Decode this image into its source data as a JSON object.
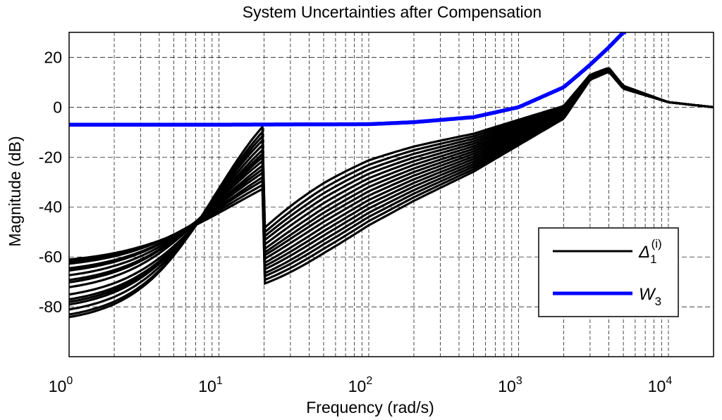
{
  "chart_data": {
    "type": "line",
    "title": "System Uncertainties after Compensation",
    "xlabel": "Frequency (rad/s)",
    "ylabel": "Magnitude (dB)",
    "x_scale": "log",
    "xlim": [
      1,
      20000
    ],
    "ylim": [
      -100,
      30
    ],
    "x_ticks": [
      1,
      10,
      100,
      1000,
      10000
    ],
    "x_tick_labels": [
      {
        "base": "10",
        "exp": "0"
      },
      {
        "base": "10",
        "exp": "1"
      },
      {
        "base": "10",
        "exp": "2"
      },
      {
        "base": "10",
        "exp": "3"
      },
      {
        "base": "10",
        "exp": "4"
      }
    ],
    "y_ticks": [
      -80,
      -60,
      -40,
      -20,
      0,
      20
    ],
    "y_tick_labels": [
      "-80",
      "-60",
      "-40",
      "-20",
      "0",
      "20"
    ],
    "grid": true,
    "legend_position": "lower-right",
    "legend": [
      {
        "symbol": "Δ",
        "subscript": "1",
        "superscript": "(i)",
        "color": "#000000"
      },
      {
        "symbol": "W",
        "subscript": "3",
        "superscript": "",
        "color": "#0000ff"
      }
    ],
    "series": [
      {
        "key": "delta1",
        "color": "#000000",
        "family": {
          "low_freq_levels_db": [
            -63,
            -64,
            -65,
            -67,
            -68,
            -70,
            -72,
            -73,
            -75,
            -78,
            -80,
            -81,
            -82,
            -84,
            -86,
            -87
          ],
          "mid_points": [
            [
              20,
              -55
            ],
            [
              50,
              -42
            ],
            [
              100,
              -33
            ],
            [
              200,
              -26
            ],
            [
              500,
              -18
            ],
            [
              1000,
              -10
            ],
            [
              2000,
              -2
            ],
            [
              3000,
              12
            ],
            [
              4000,
              15
            ],
            [
              5000,
              8
            ],
            [
              10000,
              2
            ],
            [
              20000,
              0
            ]
          ],
          "peak_db": 16,
          "peak_freq": 4000,
          "high_freq_db": 0
        }
      },
      {
        "key": "W3",
        "color": "#0000ff",
        "x": [
          1,
          10,
          100,
          200,
          500,
          1000,
          2000,
          3000,
          4000,
          5000
        ],
        "y": [
          -7,
          -7,
          -6.8,
          -6,
          -4,
          0,
          8,
          17,
          24,
          30
        ]
      }
    ]
  }
}
